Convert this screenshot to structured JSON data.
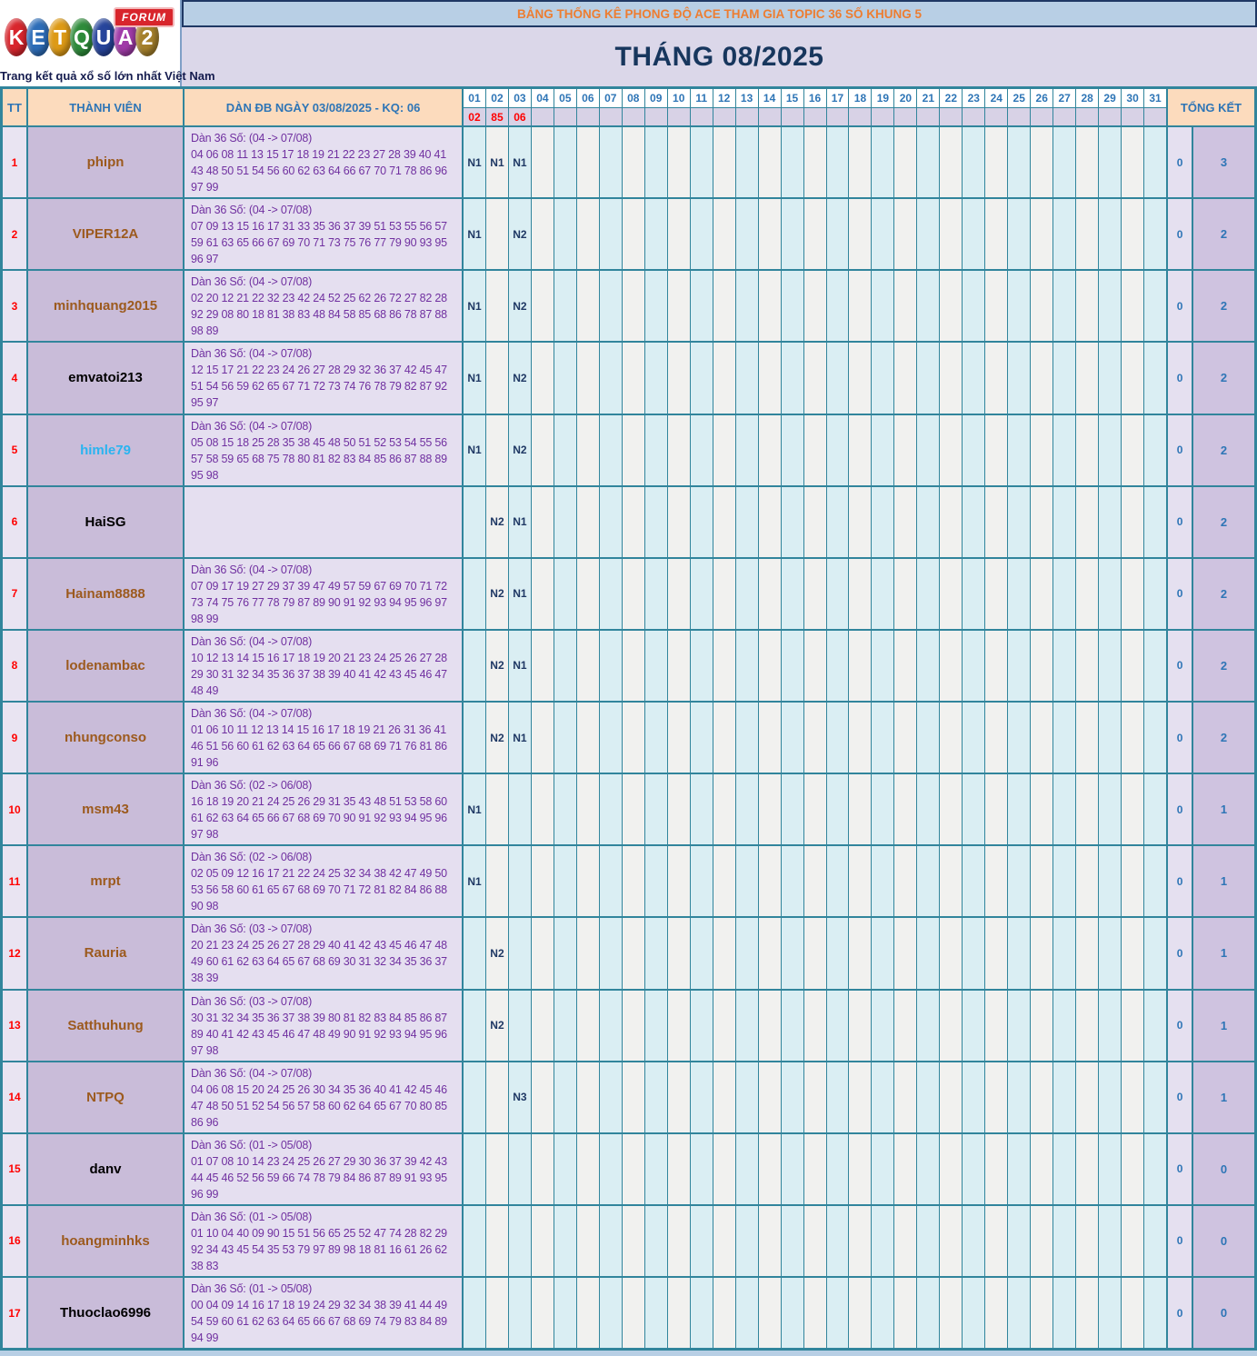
{
  "logo": {
    "letters": [
      {
        "char": "K",
        "color": "#d8262d"
      },
      {
        "char": "E",
        "color": "#2d6db8"
      },
      {
        "char": "T",
        "color": "#dd9a16"
      },
      {
        "char": "Q",
        "color": "#2e8b3a"
      },
      {
        "char": "U",
        "color": "#27459b"
      },
      {
        "char": "A",
        "color": "#a03ba8"
      },
      {
        "char": "2",
        "color": "#a5802b"
      }
    ],
    "forum_label": "FORUM",
    "tagline": "Trang kết quả xổ số lớn nhất Việt Nam"
  },
  "banner": {
    "text": "BẢNG THỐNG KÊ PHONG ĐỘ ACE THAM GIA TOPIC 36 SỐ KHUNG 5"
  },
  "title": {
    "text": "THÁNG 08/2025"
  },
  "table": {
    "headers": {
      "tt": "TT",
      "member": "THÀNH VIÊN",
      "dan": "DÀN ĐB NGÀY 03/08/2025 - KQ: 06",
      "tongket": "TỔNG KẾT"
    },
    "days": [
      "01",
      "02",
      "03",
      "04",
      "05",
      "06",
      "07",
      "08",
      "09",
      "10",
      "11",
      "12",
      "13",
      "14",
      "15",
      "16",
      "17",
      "18",
      "19",
      "20",
      "21",
      "22",
      "23",
      "24",
      "25",
      "26",
      "27",
      "28",
      "29",
      "30",
      "31"
    ],
    "day_results": {
      "01": "02",
      "02": "85",
      "03": "06"
    },
    "rows": [
      {
        "tt": "1",
        "member": "phipn",
        "name_color": "#9c5a1e",
        "dan_title": "Dàn 36 Số: (04 -> 07/08)",
        "dan_numbers": "04 06 08 11 13 15 17 18 19 21 22 23 27 28 39 40 41 43 48 50 51 54 56 60 62 63 64 66 67 70 71 78 86 96 97 99",
        "marks": {
          "01": "N1",
          "02": "N1",
          "03": "N1"
        },
        "tk": [
          "0",
          "3"
        ]
      },
      {
        "tt": "2",
        "member": "VIPER12A",
        "name_color": "#9c5a1e",
        "dan_title": "Dàn 36 Số: (04 -> 07/08)",
        "dan_numbers": "07 09 13 15 16 17 31 33 35 36 37 39 51 53 55 56 57 59 61 63 65 66 67 69 70 71 73 75 76 77 79 90 93 95 96 97",
        "marks": {
          "01": "N1",
          "03": "N2"
        },
        "tk": [
          "0",
          "2"
        ]
      },
      {
        "tt": "3",
        "member": "minhquang2015",
        "name_color": "#9c5a1e",
        "dan_title": "Dàn 36 Số: (04 -> 07/08)",
        "dan_numbers": "02 20 12 21 22 32 23 42 24 52 25 62 26 72 27 82 28 92 29 08 80 18 81 38 83 48 84 58 85 68 86 78 87 88 98 89",
        "marks": {
          "01": "N1",
          "03": "N2"
        },
        "tk": [
          "0",
          "2"
        ]
      },
      {
        "tt": "4",
        "member": "emvatoi213",
        "name_color": "#000000",
        "dan_title": "Dàn 36 Số: (04 -> 07/08)",
        "dan_numbers": "12 15 17 21 22 23 24 26 27 28 29 32 36 37 42 45 47 51 54 56 59 62 65 67 71 72 73 74 76 78 79 82 87 92 95 97",
        "marks": {
          "01": "N1",
          "03": "N2"
        },
        "tk": [
          "0",
          "2"
        ]
      },
      {
        "tt": "5",
        "member": "himle79",
        "name_color": "#2ab4f0",
        "dan_title": "Dàn 36 Số: (04 -> 07/08)",
        "dan_numbers": "05 08 15 18 25 28 35 38 45 48 50 51 52 53 54 55 56 57 58 59 65 68 75 78 80 81 82 83 84 85 86 87 88 89 95 98",
        "marks": {
          "01": "N1",
          "03": "N2"
        },
        "tk": [
          "0",
          "2"
        ]
      },
      {
        "tt": "6",
        "member": "HaiSG",
        "name_color": "#000000",
        "dan_title": "",
        "dan_numbers": "",
        "marks": {
          "02": "N2",
          "03": "N1"
        },
        "tk": [
          "0",
          "2"
        ]
      },
      {
        "tt": "7",
        "member": "Hainam8888",
        "name_color": "#9c5a1e",
        "dan_title": "Dàn 36 Số: (04 -> 07/08)",
        "dan_numbers": "07 09 17 19 27 29 37 39 47 49 57 59 67 69 70 71 72 73 74 75 76 77 78 79 87 89 90 91 92 93 94 95 96 97 98 99",
        "marks": {
          "02": "N2",
          "03": "N1"
        },
        "tk": [
          "0",
          "2"
        ]
      },
      {
        "tt": "8",
        "member": "lodenambac",
        "name_color": "#9c5a1e",
        "dan_title": "Dàn 36 Số: (04 -> 07/08)",
        "dan_numbers": "10 12 13 14 15 16 17 18 19 20 21 23 24 25 26 27 28 29 30 31 32 34 35 36 37 38 39 40 41 42 43 45 46 47 48 49",
        "marks": {
          "02": "N2",
          "03": "N1"
        },
        "tk": [
          "0",
          "2"
        ]
      },
      {
        "tt": "9",
        "member": "nhungconso",
        "name_color": "#9c5a1e",
        "dan_title": "Dàn 36 Số: (04 -> 07/08)",
        "dan_numbers": "01 06 10 11 12 13 14 15 16 17 18 19 21 26 31 36 41 46 51 56 60 61 62 63 64 65 66 67 68 69 71 76 81 86 91 96",
        "marks": {
          "02": "N2",
          "03": "N1"
        },
        "tk": [
          "0",
          "2"
        ]
      },
      {
        "tt": "10",
        "member": "msm43",
        "name_color": "#9c5a1e",
        "dan_title": "Dàn 36 Số: (02 -> 06/08)",
        "dan_numbers": "16 18 19 20 21 24 25 26 29 31 35 43 48 51 53 58 60 61 62 63 64 65 66 67 68 69 70 90 91 92 93 94 95 96 97 98",
        "marks": {
          "01": "N1"
        },
        "tk": [
          "0",
          "1"
        ]
      },
      {
        "tt": "11",
        "member": "mrpt",
        "name_color": "#9c5a1e",
        "dan_title": "Dàn 36 Số: (02 -> 06/08)",
        "dan_numbers": "02 05 09 12 16 17 21 22 24 25 32 34 38 42 47 49 50 53 56 58 60 61 65 67 68 69 70 71 72 81 82 84 86 88 90 98",
        "marks": {
          "01": "N1"
        },
        "tk": [
          "0",
          "1"
        ]
      },
      {
        "tt": "12",
        "member": "Rauria",
        "name_color": "#9c5a1e",
        "dan_title": "Dàn 36 Số: (03 -> 07/08)",
        "dan_numbers": "20 21 23 24 25 26 27 28 29 40 41 42 43 45 46 47 48 49 60 61 62 63 64 65 67 68 69 30 31 32 34 35 36 37 38 39",
        "marks": {
          "02": "N2"
        },
        "tk": [
          "0",
          "1"
        ]
      },
      {
        "tt": "13",
        "member": "Satthuhung",
        "name_color": "#9c5a1e",
        "dan_title": "Dàn 36 Số: (03 -> 07/08)",
        "dan_numbers": "30 31 32 34 35 36 37 38 39 80 81 82 83 84 85 86 87 89 40 41 42 43 45 46 47 48 49 90 91 92 93 94 95 96 97 98",
        "marks": {
          "02": "N2"
        },
        "tk": [
          "0",
          "1"
        ]
      },
      {
        "tt": "14",
        "member": "NTPQ",
        "name_color": "#9c5a1e",
        "dan_title": "Dàn 36 Số: (04 -> 07/08)",
        "dan_numbers": "04 06 08 15 20 24 25 26 30 34 35 36 40 41 42 45 46 47 48 50 51 52 54 56 57 58 60 62 64 65 67 70 80 85 86 96",
        "marks": {
          "03": "N3"
        },
        "tk": [
          "0",
          "1"
        ]
      },
      {
        "tt": "15",
        "member": "danv",
        "name_color": "#000000",
        "dan_title": "Dàn 36 Số: (01 -> 05/08)",
        "dan_numbers": "01 07 08 10 14 23 24 25 26 27 29 30 36 37 39 42 43 44 45 46 52 56 59 66 74 78 79 84 86 87 89 91 93 95 96 99",
        "marks": {},
        "tk": [
          "0",
          "0"
        ]
      },
      {
        "tt": "16",
        "member": "hoangminhks",
        "name_color": "#9c5a1e",
        "dan_title": "Dàn 36 Số: (01 -> 05/08)",
        "dan_numbers": "01 10 04 40 09 90 15 51 56 65 25 52 47 74 28 82 29 92 34 43 45 54 35 53 79 97 89 98 18 81 16 61 26 62 38 83",
        "marks": {},
        "tk": [
          "0",
          "0"
        ]
      },
      {
        "tt": "17",
        "member": "Thuoclao6996",
        "name_color": "#000000",
        "dan_title": "Dàn 36 Số: (01 -> 05/08)",
        "dan_numbers": "00 04 09 14 16 17 18 19 24 29 32 34 38 39 41 44 49 54 59 60 61 62 63 64 65 66 67 68 69 74 79 83 84 89 94 99",
        "marks": {},
        "tk": [
          "0",
          "0"
        ]
      }
    ]
  }
}
